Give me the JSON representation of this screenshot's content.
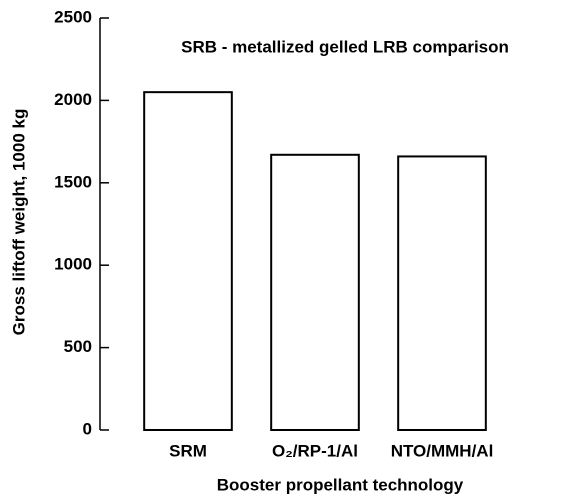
{
  "chart_data": {
    "type": "bar",
    "title": "SRB - metallized gelled LRB comparison",
    "x_label": "Booster propellant technology",
    "y_label": "Gross liftoff weight, 1000 kg",
    "categories": [
      "SRM",
      "O₂/RP-1/Al",
      "NTO/MMH/Al"
    ],
    "values": [
      2050,
      1670,
      1660
    ],
    "color": "#ffffff",
    "edgecolor": "#000000",
    "ylim": [
      0,
      2500
    ],
    "yticks": [
      0,
      500,
      1000,
      1500,
      2000,
      2500
    ],
    "grid": false
  }
}
